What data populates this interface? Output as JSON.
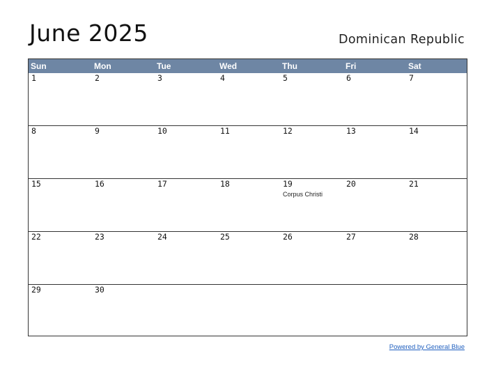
{
  "header": {
    "title": "June 2025",
    "country": "Dominican Republic"
  },
  "weekdays": [
    "Sun",
    "Mon",
    "Tue",
    "Wed",
    "Thu",
    "Fri",
    "Sat"
  ],
  "weeks": [
    [
      {
        "day": "1"
      },
      {
        "day": "2"
      },
      {
        "day": "3"
      },
      {
        "day": "4"
      },
      {
        "day": "5"
      },
      {
        "day": "6"
      },
      {
        "day": "7"
      }
    ],
    [
      {
        "day": "8"
      },
      {
        "day": "9"
      },
      {
        "day": "10"
      },
      {
        "day": "11"
      },
      {
        "day": "12"
      },
      {
        "day": "13"
      },
      {
        "day": "14"
      }
    ],
    [
      {
        "day": "15"
      },
      {
        "day": "16"
      },
      {
        "day": "17"
      },
      {
        "day": "18"
      },
      {
        "day": "19",
        "holiday": "Corpus Christi"
      },
      {
        "day": "20"
      },
      {
        "day": "21"
      }
    ],
    [
      {
        "day": "22"
      },
      {
        "day": "23"
      },
      {
        "day": "24"
      },
      {
        "day": "25"
      },
      {
        "day": "26"
      },
      {
        "day": "27"
      },
      {
        "day": "28"
      }
    ],
    [
      {
        "day": "29"
      },
      {
        "day": "30"
      },
      {
        "day": ""
      },
      {
        "day": ""
      },
      {
        "day": ""
      },
      {
        "day": ""
      },
      {
        "day": ""
      }
    ]
  ],
  "footer": {
    "link_text": "Powered by General Blue"
  },
  "colors": {
    "header_bg": "#6e86a4",
    "header_text": "#ffffff",
    "border": "#333333",
    "link": "#1f5fbf"
  }
}
